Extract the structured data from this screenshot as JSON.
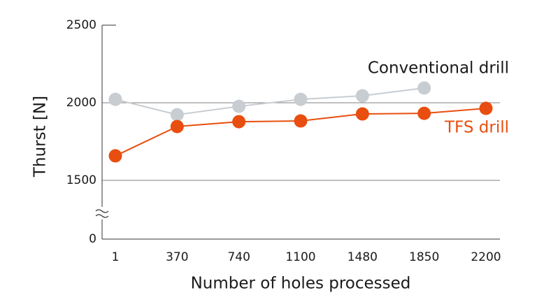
{
  "chart_data": {
    "type": "line",
    "xlabel": "Number of holes processed",
    "ylabel": "Thurst [N]",
    "categories": [
      "1",
      "370",
      "740",
      "1100",
      "1480",
      "1850",
      "2200"
    ],
    "series": [
      {
        "name": "Conventional drill",
        "color": "#c8cdd2",
        "values": [
          2022,
          1923,
          1977,
          2022,
          2045,
          2095,
          null
        ]
      },
      {
        "name": "TFS drill",
        "color": "#e84e0f",
        "values": [
          1658,
          1847,
          1878,
          1883,
          1928,
          1932,
          1964
        ]
      }
    ],
    "ylim": [
      0,
      2500
    ],
    "yticks": [
      0,
      1500,
      2000,
      2500
    ],
    "axis_break": true,
    "grid": true
  }
}
